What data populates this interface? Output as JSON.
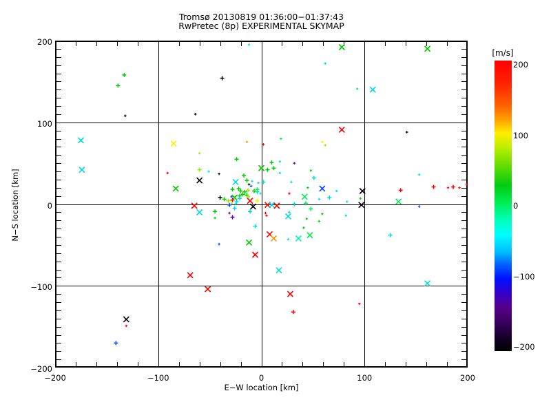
{
  "window": {
    "background": "#ffffff"
  },
  "header": {
    "title": "Tromsø 20130819 01:36:00−01:37:43",
    "subtitle": "RwPretec (8p) EXPERIMENTAL SKYMAP"
  },
  "chart_data": {
    "type": "scatter",
    "title": "Tromsø 20130819 01:36:00−01:37:43",
    "subtitle": "RwPretec (8p) EXPERIMENTAL SKYMAP",
    "xlabel": "E−W location [km]",
    "ylabel": "N−S location [km]",
    "xlim": [
      -200,
      200
    ],
    "ylim": [
      -200,
      200
    ],
    "xticks": [
      -200,
      -100,
      0,
      100,
      200
    ],
    "yticks": [
      200,
      100,
      0,
      -100,
      -200
    ],
    "xtick_labels": [
      "−200",
      "−100",
      "0",
      "100",
      "200"
    ],
    "ytick_labels": [
      "200",
      "100",
      "0",
      "−100",
      "−200"
    ],
    "x_minor_step_km": 20,
    "y_minor_step_km": 10,
    "grid": true,
    "frame_color": "#000000",
    "colorbar": {
      "label": "[m/s]",
      "min": -200,
      "max": 200,
      "ticks": [
        200,
        100,
        0,
        -100,
        -200
      ],
      "tick_labels": [
        "200",
        "100",
        "0",
        "−100",
        "−200"
      ],
      "stops": [
        [
          0,
          "#ff0000"
        ],
        [
          8,
          "#ff2200"
        ],
        [
          16,
          "#ff6600"
        ],
        [
          21,
          "#ffaa00"
        ],
        [
          25,
          "#ffee00"
        ],
        [
          30,
          "#bbee00"
        ],
        [
          36,
          "#66dd00"
        ],
        [
          43,
          "#00cc11"
        ],
        [
          49,
          "#00ee55"
        ],
        [
          55,
          "#00ffbb"
        ],
        [
          60,
          "#00ffff"
        ],
        [
          66,
          "#00bbff"
        ],
        [
          70,
          "#0066ff"
        ],
        [
          75,
          "#0011ff"
        ],
        [
          80,
          "#3300cc"
        ],
        [
          85,
          "#550088"
        ],
        [
          91,
          "#330055"
        ],
        [
          96,
          "#110022"
        ],
        [
          100,
          "#000000"
        ]
      ]
    },
    "palette": {
      "red": {
        "hex": "#ff0000",
        "v": 190
      },
      "org": {
        "hex": "#ff9900",
        "v": 140
      },
      "yel": {
        "hex": "#ffee00",
        "v": 100
      },
      "ygr": {
        "hex": "#99ee00",
        "v": 70
      },
      "grn": {
        "hex": "#00cc00",
        "v": 40
      },
      "spg": {
        "hex": "#00ee55",
        "v": 15
      },
      "cgr": {
        "hex": "#00ffaa",
        "v": 0
      },
      "cyn": {
        "hex": "#00dddd",
        "v": -30
      },
      "blu": {
        "hex": "#0044ff",
        "v": -100
      },
      "pur": {
        "hex": "#550099",
        "v": -150
      },
      "blk": {
        "hex": "#000000",
        "v": -195
      }
    },
    "points": [
      [
        -133,
        158,
        "grn",
        "p"
      ],
      [
        -139,
        145,
        "grn",
        "p"
      ],
      [
        -132,
        108,
        "blk",
        "d"
      ],
      [
        -175,
        78,
        "cyn",
        "x"
      ],
      [
        -85,
        74,
        "yel",
        "x"
      ],
      [
        -174,
        42,
        "cyn",
        "x"
      ],
      [
        -91,
        38,
        "red",
        "d"
      ],
      [
        -60,
        62,
        "ygr",
        "d"
      ],
      [
        -60,
        42,
        "ygr",
        "p"
      ],
      [
        -60,
        29,
        "blk",
        "x"
      ],
      [
        -83,
        19,
        "grn",
        "x"
      ],
      [
        -65,
        -2,
        "red",
        "x"
      ],
      [
        -60,
        -10,
        "cyn",
        "x"
      ],
      [
        -64,
        110,
        "blk",
        "d"
      ],
      [
        -38,
        154,
        "blk",
        "p"
      ],
      [
        -12,
        195,
        "cyn",
        "d"
      ],
      [
        62,
        172,
        "cyn",
        "d"
      ],
      [
        78,
        192,
        "grn",
        "x"
      ],
      [
        161,
        190,
        "grn",
        "x"
      ],
      [
        93,
        141,
        "spg",
        "d"
      ],
      [
        108,
        140,
        "cyn",
        "x"
      ],
      [
        78,
        91,
        "red",
        "x"
      ],
      [
        141,
        88,
        "blk",
        "d"
      ],
      [
        153,
        36,
        "cyn",
        "d"
      ],
      [
        -24,
        55,
        "grn",
        "p"
      ],
      [
        -14,
        76,
        "org",
        "d"
      ],
      [
        2,
        73,
        "red",
        "d"
      ],
      [
        19,
        80,
        "spg",
        "d"
      ],
      [
        59,
        76,
        "yel",
        "d"
      ],
      [
        62,
        72,
        "ygr",
        "d"
      ],
      [
        -51,
        40,
        "cyn",
        "d"
      ],
      [
        -41,
        37,
        "blk",
        "d"
      ],
      [
        0,
        44,
        "grn",
        "x"
      ],
      [
        6,
        42,
        "grn",
        "p"
      ],
      [
        10,
        51,
        "grn",
        "p"
      ],
      [
        18,
        52,
        "cyn",
        "d"
      ],
      [
        18,
        38,
        "cyn",
        "d"
      ],
      [
        32,
        50,
        "pur",
        "d"
      ],
      [
        48,
        41,
        "grn",
        "d"
      ],
      [
        12,
        44,
        "grn",
        "p"
      ],
      [
        -17,
        35,
        "grn",
        "p"
      ],
      [
        -14,
        29,
        "grn",
        "p"
      ],
      [
        -25,
        27,
        "cyn",
        "x"
      ],
      [
        -9,
        28,
        "cyn",
        "d"
      ],
      [
        -12,
        24,
        "blk",
        "d"
      ],
      [
        -3,
        26,
        "cyn",
        "d"
      ],
      [
        2,
        27,
        "cyn",
        "p"
      ],
      [
        -28,
        18,
        "grn",
        "p"
      ],
      [
        -22,
        19,
        "grn",
        "p"
      ],
      [
        -20,
        16,
        "grn",
        "p"
      ],
      [
        -16,
        15,
        "grn",
        "p"
      ],
      [
        -13,
        17,
        "ygr",
        "p"
      ],
      [
        -7,
        16,
        "grn",
        "p"
      ],
      [
        -4,
        15,
        "cyn",
        "p"
      ],
      [
        -1,
        13,
        "cyn",
        "d"
      ],
      [
        -10,
        22,
        "blu",
        "d"
      ],
      [
        -4,
        18,
        "spg",
        "p"
      ],
      [
        -29,
        9,
        "blu",
        "d"
      ],
      [
        -26,
        8,
        "grn",
        "x"
      ],
      [
        -21,
        10,
        "grn",
        "p"
      ],
      [
        -18,
        12,
        "grn",
        "p"
      ],
      [
        -14,
        11,
        "grn",
        "p"
      ],
      [
        -40,
        8,
        "blk",
        "p"
      ],
      [
        -36,
        6,
        "grn",
        "p"
      ],
      [
        -32,
        4,
        "ygr",
        "p"
      ],
      [
        -28,
        5,
        "red",
        "p"
      ],
      [
        -24,
        3,
        "cyn",
        "p"
      ],
      [
        -13,
        9,
        "ygr",
        "p"
      ],
      [
        -21,
        7,
        "cyn",
        "p"
      ],
      [
        -11,
        4,
        "red",
        "x"
      ],
      [
        -4,
        4,
        "yel",
        "p"
      ],
      [
        -29,
        1,
        "ygr",
        "d"
      ],
      [
        -25,
        0,
        "cyn",
        "d"
      ],
      [
        -31,
        -1,
        "blu",
        "p"
      ],
      [
        -8,
        -3,
        "blk",
        "x"
      ],
      [
        6,
        -1,
        "red",
        "x"
      ],
      [
        10,
        -1,
        "cyn",
        "x"
      ],
      [
        15,
        -2,
        "red",
        "x"
      ],
      [
        45,
        20,
        "grn",
        "d"
      ],
      [
        59,
        19,
        "blu",
        "x"
      ],
      [
        73,
        16,
        "cyn",
        "d"
      ],
      [
        27,
        13,
        "red",
        "d"
      ],
      [
        42,
        9,
        "spg",
        "x"
      ],
      [
        56,
        6,
        "cyn",
        "d"
      ],
      [
        66,
        8,
        "cyn",
        "p"
      ],
      [
        43,
        1,
        "spg",
        "p"
      ],
      [
        83,
        3,
        "cyn",
        "d"
      ],
      [
        98,
        16,
        "blk",
        "x"
      ],
      [
        96,
        7,
        "grn",
        "d"
      ],
      [
        97,
        -1,
        "blk",
        "x"
      ],
      [
        51,
        32,
        "cyn",
        "p"
      ],
      [
        29,
        27,
        "cyn",
        "d"
      ],
      [
        135,
        17,
        "red",
        "p"
      ],
      [
        133,
        3,
        "spg",
        "x"
      ],
      [
        153,
        -3,
        "blu",
        "d"
      ],
      [
        167,
        21,
        "red",
        "p"
      ],
      [
        181,
        20,
        "red",
        "d"
      ],
      [
        186,
        21,
        "red",
        "p"
      ],
      [
        192,
        20,
        "red",
        "d"
      ],
      [
        199,
        24,
        "red",
        "d"
      ],
      [
        125,
        -38,
        "cyn",
        "p"
      ],
      [
        -45,
        -9,
        "grn",
        "p"
      ],
      [
        -26,
        -5,
        "cyn",
        "p"
      ],
      [
        -31,
        -11,
        "pur",
        "d"
      ],
      [
        -11,
        -9,
        "cyn",
        "p"
      ],
      [
        -28,
        -16,
        "pur",
        "p"
      ],
      [
        4,
        -11,
        "red",
        "d"
      ],
      [
        32,
        0,
        "cyn",
        "p"
      ],
      [
        27,
        -10,
        "cyn",
        "d"
      ],
      [
        48,
        -6,
        "spg",
        "p"
      ],
      [
        59,
        -12,
        "grn",
        "d"
      ],
      [
        44,
        -18,
        "grn",
        "d"
      ],
      [
        56,
        -21,
        "grn",
        "d"
      ],
      [
        82,
        -14,
        "cyn",
        "d"
      ],
      [
        41,
        -29,
        "grn",
        "d"
      ],
      [
        -45,
        -17,
        "grn",
        "d"
      ],
      [
        -6,
        -27,
        "cyn",
        "p"
      ],
      [
        26,
        -15,
        "cyn",
        "x"
      ],
      [
        5,
        -14,
        "red",
        "d"
      ],
      [
        47,
        -38,
        "spg",
        "x"
      ],
      [
        36,
        -42,
        "cgr",
        "x"
      ],
      [
        8,
        -37,
        "red",
        "x"
      ],
      [
        12,
        -42,
        "org",
        "x"
      ],
      [
        26,
        -43,
        "cyn",
        "d"
      ],
      [
        -41,
        -49,
        "blu",
        "d"
      ],
      [
        -12,
        -47,
        "grn",
        "x"
      ],
      [
        -6,
        -62,
        "red",
        "x"
      ],
      [
        17,
        -81,
        "cyn",
        "x"
      ],
      [
        -52,
        -104,
        "red",
        "x"
      ],
      [
        28,
        -110,
        "red",
        "x"
      ],
      [
        -69,
        -87,
        "red",
        "x"
      ],
      [
        161,
        -97,
        "cyn",
        "x"
      ],
      [
        95,
        -122,
        "red",
        "d"
      ],
      [
        31,
        -132,
        "red",
        "p"
      ],
      [
        -131,
        -141,
        "blk",
        "x"
      ],
      [
        -131,
        -149,
        "red",
        "d"
      ],
      [
        -141,
        -170,
        "blu",
        "p"
      ]
    ]
  }
}
